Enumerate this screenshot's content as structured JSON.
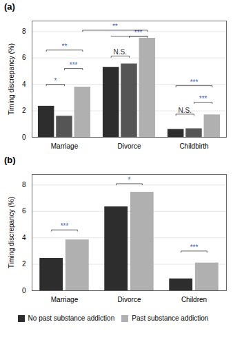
{
  "chart_data": [
    {
      "type": "bar",
      "title": "(a)",
      "categories": [
        "Marriage",
        "Divorce",
        "Childbirth"
      ],
      "series": [
        {
          "color": "#2d2d2d",
          "values": [
            2.35,
            5.3,
            0.6
          ]
        },
        {
          "color": "#555555",
          "values": [
            1.6,
            5.55,
            0.65
          ]
        },
        {
          "color": "#b0b0b0",
          "values": [
            3.8,
            7.5,
            1.7
          ]
        }
      ],
      "ylim": [
        0,
        8.8
      ],
      "yticks": [
        0,
        2,
        4,
        6,
        8
      ],
      "ylabel": "Timing discrepancy (%)",
      "grid": true,
      "annotations": [
        {
          "text": "*",
          "from": [
            "Marriage",
            0
          ],
          "to": [
            "Marriage",
            1
          ],
          "y": 4.0,
          "color": "#4466bb"
        },
        {
          "text": "***",
          "from": [
            "Marriage",
            1
          ],
          "to": [
            "Marriage",
            2
          ],
          "y": 5.2,
          "color": "#4466bb"
        },
        {
          "text": "**",
          "from": [
            "Marriage",
            0
          ],
          "to": [
            "Marriage",
            2
          ],
          "y": 6.6,
          "color": "#4466bb"
        },
        {
          "text": "N.S.",
          "from": [
            "Divorce",
            0
          ],
          "to": [
            "Divorce",
            1
          ],
          "y": 6.15,
          "color": "#333333"
        },
        {
          "text": "***",
          "from": [
            "Divorce",
            1
          ],
          "to": [
            "Divorce",
            2
          ],
          "y": 7.65,
          "color": "#4466bb"
        },
        {
          "text": "N.S.",
          "from": [
            "Childbirth",
            0
          ],
          "to": [
            "Childbirth",
            1
          ],
          "y": 1.75,
          "color": "#333333"
        },
        {
          "text": "***",
          "from": [
            "Childbirth",
            1
          ],
          "to": [
            "Childbirth",
            2
          ],
          "y": 2.65,
          "color": "#4466bb"
        },
        {
          "text": "***",
          "from": [
            "Childbirth",
            0
          ],
          "to": [
            "Childbirth",
            2
          ],
          "y": 3.9,
          "color": "#4466bb"
        },
        {
          "text": "**",
          "from": [
            "Marriage",
            2
          ],
          "to": [
            "Divorce",
            2
          ],
          "y": 8.1,
          "color": "#4466bb"
        },
        {
          "from": [
            "Divorce",
            0
          ],
          "to": [
            "Divorce",
            2
          ],
          "y": 7.65
        }
      ]
    },
    {
      "type": "bar",
      "title": "(b)",
      "categories": [
        "Marriage",
        "Divorce",
        "Children"
      ],
      "series": [
        {
          "name": "No past substance addiction",
          "color": "#2d2d2d",
          "values": [
            2.45,
            6.35,
            0.9
          ]
        },
        {
          "name": "Past substance addiction",
          "color": "#b0b0b0",
          "values": [
            3.85,
            7.45,
            2.1
          ]
        }
      ],
      "ylim": [
        0,
        8.8
      ],
      "yticks": [
        0,
        2,
        4,
        6,
        8
      ],
      "ylabel": "Timing discrepancy (%)",
      "grid": true,
      "legend": "bottom",
      "annotations": [
        {
          "text": "***",
          "from": [
            "Marriage",
            0
          ],
          "to": [
            "Marriage",
            1
          ],
          "y": 4.6,
          "color": "#4466bb"
        },
        {
          "text": "*",
          "from": [
            "Divorce",
            0
          ],
          "to": [
            "Divorce",
            1
          ],
          "y": 8.1,
          "color": "#4466bb"
        },
        {
          "text": "***",
          "from": [
            "Children",
            0
          ],
          "to": [
            "Children",
            1
          ],
          "y": 3.0,
          "color": "#4466bb"
        }
      ]
    }
  ]
}
